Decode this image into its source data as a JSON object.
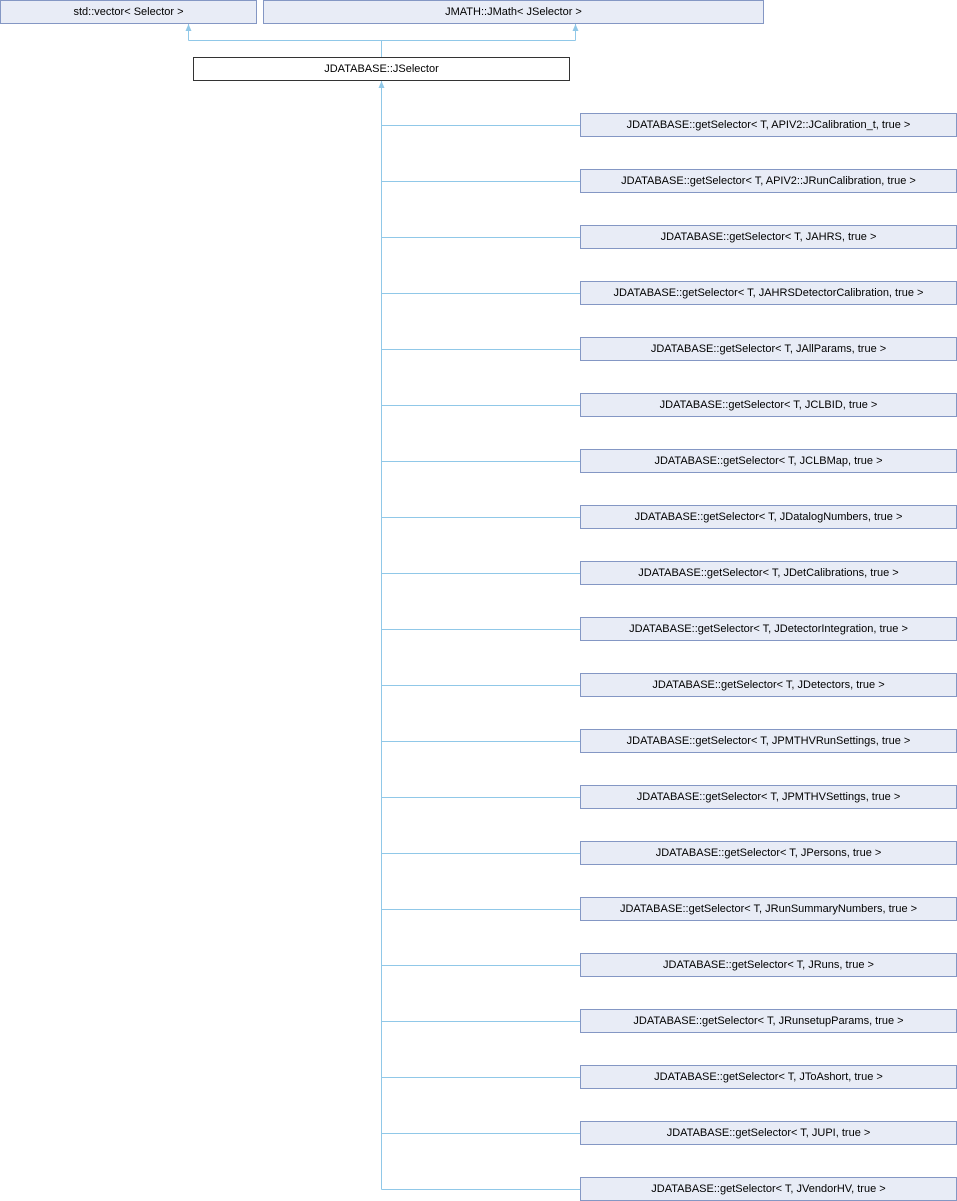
{
  "colors": {
    "edge": "#90c8e8",
    "node_fill": "#e8ecf6",
    "node_border": "#8497c4",
    "main_border": "#333333"
  },
  "parents": [
    "std::vector< Selector >",
    "JMATH::JMath< JSelector >"
  ],
  "main": "JDATABASE::JSelector",
  "children": [
    "JDATABASE::getSelector< T, APIV2::JCalibration_t, true >",
    "JDATABASE::getSelector< T, APIV2::JRunCalibration, true >",
    "JDATABASE::getSelector< T, JAHRS, true >",
    "JDATABASE::getSelector< T, JAHRSDetectorCalibration, true >",
    "JDATABASE::getSelector< T, JAllParams, true >",
    "JDATABASE::getSelector< T, JCLBID, true >",
    "JDATABASE::getSelector< T, JCLBMap, true >",
    "JDATABASE::getSelector< T, JDatalogNumbers, true >",
    "JDATABASE::getSelector< T, JDetCalibrations, true >",
    "JDATABASE::getSelector< T, JDetectorIntegration, true >",
    "JDATABASE::getSelector< T, JDetectors, true >",
    "JDATABASE::getSelector< T, JPMTHVRunSettings, true >",
    "JDATABASE::getSelector< T, JPMTHVSettings, true >",
    "JDATABASE::getSelector< T, JPersons, true >",
    "JDATABASE::getSelector< T, JRunSummaryNumbers, true >",
    "JDATABASE::getSelector< T, JRuns, true >",
    "JDATABASE::getSelector< T, JRunsetupParams, true >",
    "JDATABASE::getSelector< T, JToAshort, true >",
    "JDATABASE::getSelector< T, JUPI, true >",
    "JDATABASE::getSelector< T, JVendorHV, true >"
  ]
}
